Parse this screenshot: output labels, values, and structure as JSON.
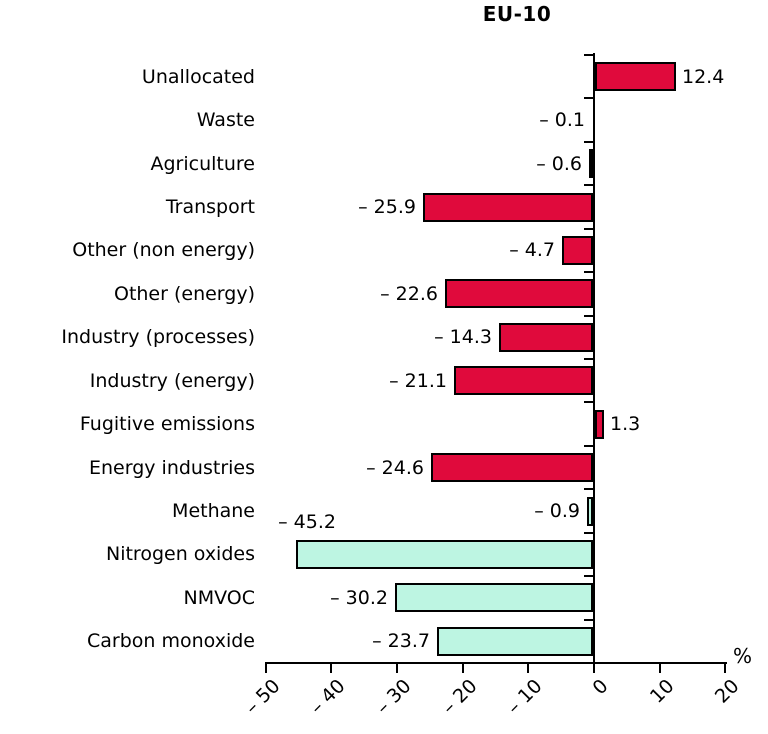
{
  "chart_data": {
    "type": "bar",
    "orientation": "horizontal",
    "title": "EU-10",
    "unit": "%",
    "xlim": [
      -50,
      20
    ],
    "xticks": [
      -50,
      -40,
      -30,
      -20,
      -10,
      0,
      10,
      20
    ],
    "xtick_labels": [
      "– 50",
      "– 40",
      "– 30",
      "– 20",
      "– 10",
      "0",
      "10",
      "20"
    ],
    "grid": false,
    "legend": "none",
    "colors": {
      "ghg_bar": "#e00a3c",
      "pollutant_bar": "#bdf5e2",
      "bar_border": "#000000",
      "axis": "#000000",
      "text": "#000000",
      "background": "#ffffff"
    },
    "rows": [
      {
        "label": "Unallocated",
        "value": 12.4,
        "value_label": "12.4",
        "group": "ghg",
        "placement": "right"
      },
      {
        "label": "Waste",
        "value": -0.1,
        "value_label": "– 0.1",
        "group": "ghg",
        "placement": "left"
      },
      {
        "label": "Agriculture",
        "value": -0.6,
        "value_label": "– 0.6",
        "group": "ghg",
        "placement": "left"
      },
      {
        "label": "Transport",
        "value": -25.9,
        "value_label": "– 25.9",
        "group": "ghg",
        "placement": "left"
      },
      {
        "label": "Other (non energy)",
        "value": -4.7,
        "value_label": "– 4.7",
        "group": "ghg",
        "placement": "left"
      },
      {
        "label": "Other (energy)",
        "value": -22.6,
        "value_label": "– 22.6",
        "group": "ghg",
        "placement": "left"
      },
      {
        "label": "Industry (processes)",
        "value": -14.3,
        "value_label": "– 14.3",
        "group": "ghg",
        "placement": "left"
      },
      {
        "label": "Industry (energy)",
        "value": -21.1,
        "value_label": "– 21.1",
        "group": "ghg",
        "placement": "left"
      },
      {
        "label": "Fugitive emissions",
        "value": 1.3,
        "value_label": "1.3",
        "group": "ghg",
        "placement": "right"
      },
      {
        "label": "Energy industries",
        "value": -24.6,
        "value_label": "– 24.6",
        "group": "ghg",
        "placement": "left"
      },
      {
        "label": "Methane",
        "value": -0.9,
        "value_label": "– 0.9",
        "group": "pollutant",
        "placement": "left"
      },
      {
        "label": "Nitrogen oxides",
        "value": -45.2,
        "value_label": "– 45.2",
        "group": "pollutant",
        "placement": "above-left"
      },
      {
        "label": "NMVOC",
        "value": -30.2,
        "value_label": "– 30.2",
        "group": "pollutant",
        "placement": "left"
      },
      {
        "label": "Carbon monoxide",
        "value": -23.7,
        "value_label": "– 23.7",
        "group": "pollutant",
        "placement": "left"
      }
    ]
  }
}
